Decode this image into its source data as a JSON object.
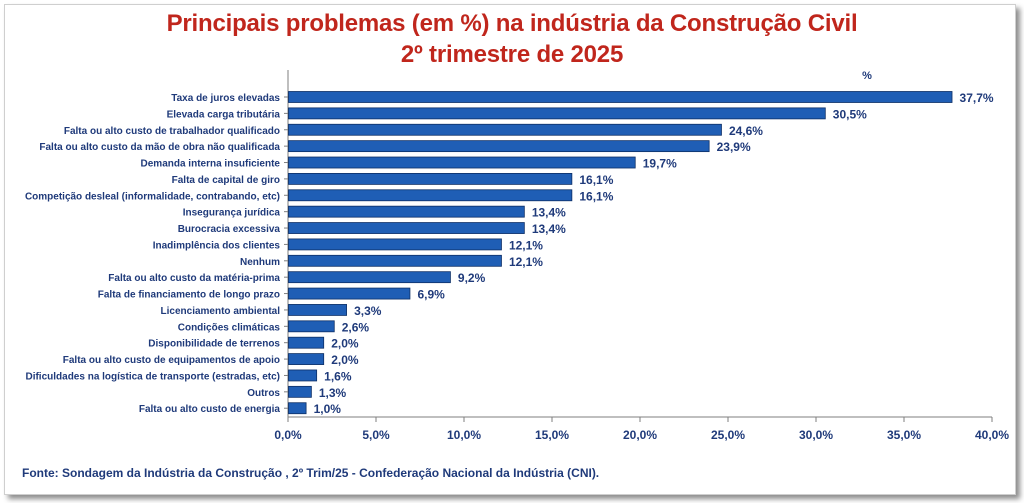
{
  "chart_data": {
    "type": "bar",
    "orientation": "horizontal",
    "title": "Principais problemas (em %) na indústria da Construção Civil",
    "subtitle": "2º trimestre de 2025",
    "unit_label": "%",
    "categories": [
      "Taxa de juros elevadas",
      "Elevada carga tributária",
      "Falta ou alto custo de trabalhador qualificado",
      "Falta ou alto custo da mão de obra não qualificada",
      "Demanda interna insuficiente",
      "Falta de capital de giro",
      "Competição desleal (informalidade, contrabando, etc)",
      "Insegurança jurídica",
      "Burocracia excessiva",
      "Inadimplência dos clientes",
      "Nenhum",
      "Falta ou alto custo da matéria-prima",
      "Falta de financiamento de longo prazo",
      "Licenciamento ambiental",
      "Condições climáticas",
      "Disponibilidade de terrenos",
      "Falta ou alto custo de equipamentos de apoio",
      "Dificuldades na logística de transporte (estradas, etc)",
      "Outros",
      "Falta ou alto custo de energia"
    ],
    "values": [
      37.7,
      30.5,
      24.6,
      23.9,
      19.7,
      16.1,
      16.1,
      13.4,
      13.4,
      12.1,
      12.1,
      9.2,
      6.9,
      3.3,
      2.6,
      2.0,
      2.0,
      1.6,
      1.3,
      1.0
    ],
    "value_labels": [
      "37,7%",
      "30,5%",
      "24,6%",
      "23,9%",
      "19,7%",
      "16,1%",
      "16,1%",
      "13,4%",
      "13,4%",
      "12,1%",
      "12,1%",
      "9,2%",
      "6,9%",
      "3,3%",
      "2,6%",
      "2,0%",
      "2,0%",
      "1,6%",
      "1,3%",
      "1,0%"
    ],
    "xlim": [
      0,
      40
    ],
    "xticks": [
      0,
      5,
      10,
      15,
      20,
      25,
      30,
      35,
      40
    ],
    "xtick_labels": [
      "0,0%",
      "5,0%",
      "10,0%",
      "15,0%",
      "20,0%",
      "25,0%",
      "30,0%",
      "35,0%",
      "40,0%"
    ],
    "grid": false,
    "colors": {
      "bar": "#1f5eb5",
      "bar_edge": "#0d2f66",
      "text": "#1f3a7a",
      "title": "#c0261c",
      "axis": "#7f7f7f"
    }
  },
  "source": "Fonte: Sondagem da Indústria da Construção , 2º Trim/25 - Confederação Nacional da  Indústria (CNI)."
}
